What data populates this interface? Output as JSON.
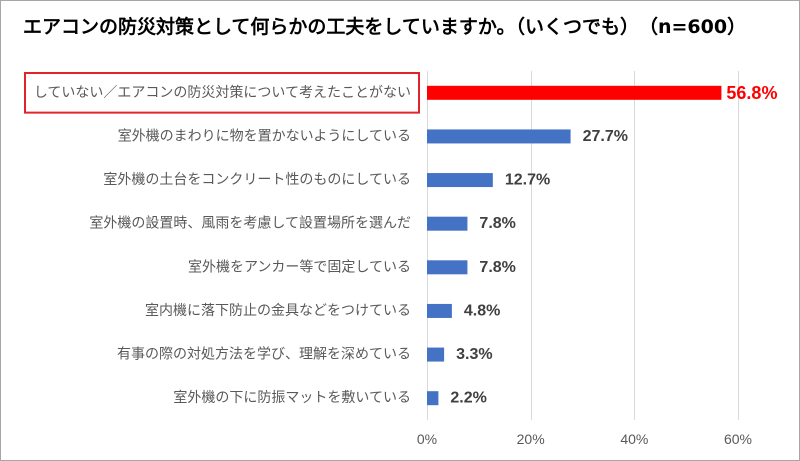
{
  "chart_data": {
    "type": "bar",
    "orientation": "horizontal",
    "title": "エアコンの防災対策として何らかの工夫をしていますか。（いくつでも）　（n=600）",
    "categories": [
      "していない／エアコンの防災対策について考えたことがない",
      "室外機のまわりに物を置かないようにしている",
      "室外機の土台をコンクリート性のものにしている",
      "室外機の設置時、風雨を考慮して設置場所を選んだ",
      "室外機をアンカー等で固定している",
      "室内機に落下防止の金具などをつけている",
      "有事の際の対処方法を学び、理解を深めている",
      "室外機の下に防振マットを敷いている"
    ],
    "values": [
      56.8,
      27.7,
      12.7,
      7.8,
      7.8,
      4.8,
      3.3,
      2.2
    ],
    "data_labels": [
      "56.8%",
      "27.7%",
      "12.7%",
      "7.8%",
      "7.8%",
      "4.8%",
      "3.3%",
      "2.2%"
    ],
    "xlim": [
      0,
      60
    ],
    "xticks": [
      0,
      20,
      40,
      60
    ],
    "xtick_labels": [
      "0%",
      "20%",
      "40%",
      "60%"
    ],
    "grid": "vertical",
    "legend": "none",
    "highlight_index": 0,
    "colors": {
      "bar": "#4472C4",
      "highlight_bar": "#FF0000",
      "highlight_label": "#FF0000",
      "highlight_box": "#E0242C",
      "value_label": "#404040",
      "category_label": "#595959",
      "grid": "#D9D9D9",
      "frame": "#A6A6A6"
    }
  }
}
